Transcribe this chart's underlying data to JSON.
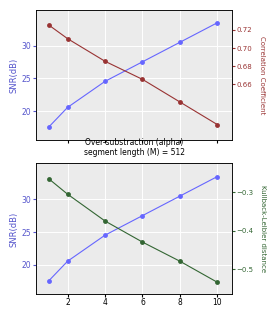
{
  "alpha": [
    1,
    2,
    4,
    6,
    8,
    10
  ],
  "snr_top": [
    17.5,
    20.5,
    24.5,
    27.5,
    30.5,
    33.5
  ],
  "corr": [
    0.725,
    0.71,
    0.685,
    0.665,
    0.64,
    0.615
  ],
  "snr_bot": [
    17.5,
    20.5,
    24.5,
    27.5,
    30.5,
    33.5
  ],
  "kl": [
    -0.265,
    -0.305,
    -0.375,
    -0.43,
    -0.48,
    -0.535
  ],
  "snr_color": "#6666ff",
  "corr_color": "#993333",
  "kl_color": "#336633",
  "top_ylabel_left": "SNR(dB)",
  "top_ylabel_right": "Correlation Coefficient",
  "bot_ylabel_left": "SNR(dB)",
  "bot_ylabel_right": "Kullback-Leibler distance",
  "xlabel_line1": "Over-substraction (alpha)",
  "xlabel_line2": "segment length (M) = 512",
  "snr_ylim": [
    15.5,
    35.5
  ],
  "snr_yticks": [
    20,
    25,
    30
  ],
  "corr_ylim": [
    0.598,
    0.742
  ],
  "corr_yticks": [
    0.66,
    0.68,
    0.7,
    0.72
  ],
  "kl_ylim": [
    -0.565,
    -0.225
  ],
  "kl_yticks": [
    -0.5,
    -0.4,
    -0.3
  ],
  "xlim": [
    0.3,
    10.8
  ],
  "xticks": [
    2,
    4,
    6,
    8,
    10
  ],
  "bg_color": "#ebebeb",
  "grid_color": "white",
  "blue_label": "#5555cc",
  "red_label": "#993333",
  "green_label": "#336633"
}
